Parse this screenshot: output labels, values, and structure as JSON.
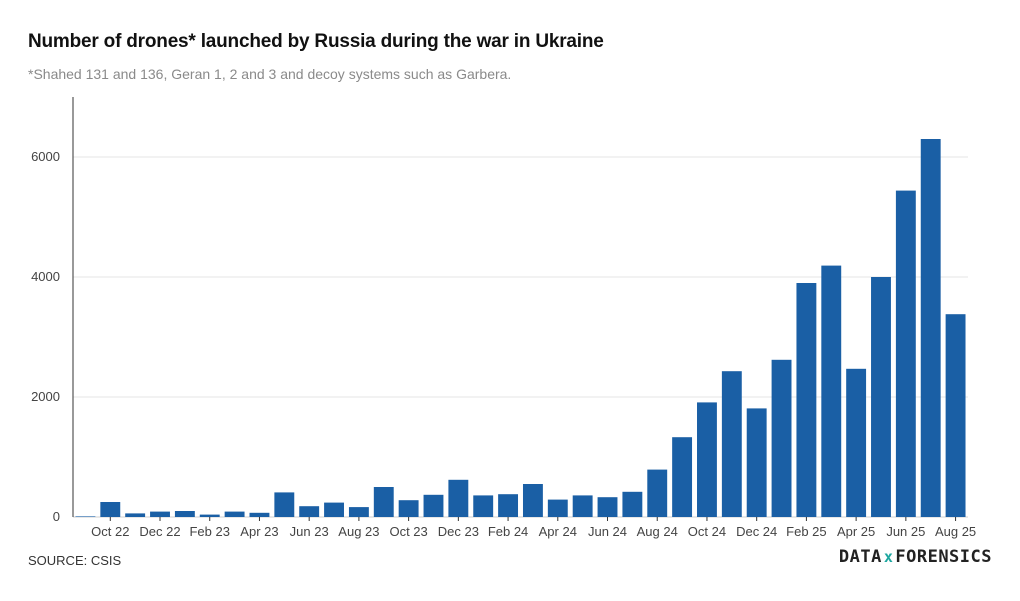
{
  "title": "Number of drones* launched by Russia during the war in Ukraine",
  "subtitle": "*Shahed 131 and 136, Geran 1, 2 and 3 and decoy systems such as Garbera.",
  "source": "SOURCE: CSIS",
  "logo": {
    "left": "DATA",
    "mid": "x",
    "right": "FORENSICS"
  },
  "colors": {
    "bar": "#1a5fa5",
    "grid": "#e6e6e6",
    "axis": "#333333"
  },
  "chart_data": {
    "type": "bar",
    "title": "Number of drones* launched by Russia during the war in Ukraine",
    "ylim": [
      0,
      7000
    ],
    "yticks": [
      0,
      2000,
      4000,
      6000
    ],
    "grid": true,
    "categories": [
      "Sep 22",
      "Oct 22",
      "Nov 22",
      "Dec 22",
      "Jan 23",
      "Feb 23",
      "Mar 23",
      "Apr 23",
      "May 23",
      "Jun 23",
      "Jul 23",
      "Aug 23",
      "Sep 23",
      "Oct 23",
      "Nov 23",
      "Dec 23",
      "Jan 24",
      "Feb 24",
      "Mar 24",
      "Apr 24",
      "May 24",
      "Jun 24",
      "Jul 24",
      "Aug 24",
      "Sep 24",
      "Oct 24",
      "Nov 24",
      "Dec 24",
      "Jan 25",
      "Feb 25",
      "Mar 25",
      "Apr 25",
      "May 25",
      "Jun 25",
      "Jul 25",
      "Aug 25"
    ],
    "values": [
      10,
      250,
      60,
      90,
      100,
      40,
      90,
      70,
      410,
      180,
      240,
      165,
      500,
      280,
      370,
      620,
      360,
      380,
      550,
      290,
      360,
      330,
      420,
      790,
      1330,
      1910,
      2430,
      1810,
      2620,
      3900,
      4190,
      2470,
      4000,
      5440,
      6300,
      3380
    ],
    "tick_labels": [
      "Oct 22",
      "Dec 22",
      "Feb 23",
      "Apr 23",
      "Jun 23",
      "Aug 23",
      "Oct 23",
      "Dec 23",
      "Feb 24",
      "Apr 24",
      "Jun 24",
      "Aug 24",
      "Oct 24",
      "Dec 24",
      "Feb 25",
      "Apr 25",
      "Jun 25",
      "Aug 25"
    ]
  }
}
